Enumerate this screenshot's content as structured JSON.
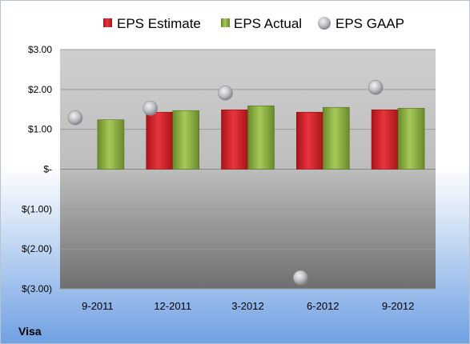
{
  "chart_data": {
    "type": "bar",
    "categories": [
      "9-2011",
      "12-2011",
      "3-2012",
      "6-2012",
      "9-2012"
    ],
    "series": [
      {
        "name": "EPS Estimate",
        "kind": "bar",
        "color": "#d21f26",
        "values": [
          null,
          1.43,
          1.49,
          1.43,
          1.49
        ]
      },
      {
        "name": "EPS Actual",
        "kind": "bar",
        "color": "#8fb23f",
        "values": [
          1.24,
          1.47,
          1.59,
          1.55,
          1.53
        ]
      },
      {
        "name": "EPS GAAP",
        "kind": "scatter",
        "color": "#b9bcc0",
        "values": [
          1.29,
          1.53,
          1.91,
          -2.72,
          2.05
        ]
      }
    ],
    "ylim": [
      -3,
      3
    ],
    "yticks": [
      3,
      2,
      1,
      0,
      -1,
      -2,
      -3
    ],
    "ytick_labels": [
      "$3.00",
      "$2.00",
      "$1.00",
      "$-",
      "$(1.00)",
      "$(2.00)",
      "$(3.00)"
    ],
    "grid": true,
    "legend_position": "top",
    "company": "Visa"
  }
}
